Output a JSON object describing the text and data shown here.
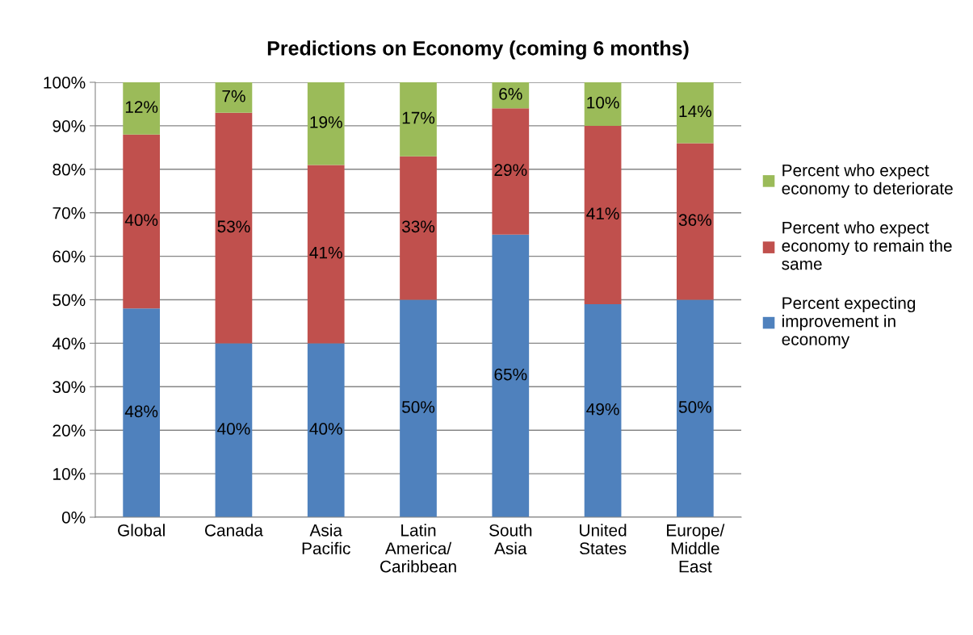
{
  "chart_data": {
    "type": "bar",
    "title": "Predictions on Economy (coming 6 months)",
    "categories": [
      "Global",
      "Canada",
      "Asia\nPacific",
      "Latin\nAmerica/\nCaribbean",
      "South\nAsia",
      "United\nStates",
      "Europe/\nMiddle\nEast"
    ],
    "stacked": true,
    "series": [
      {
        "name": "Percent expecting\nimprovement in\neconomy",
        "color": "#4f81bd",
        "values": [
          48,
          40,
          40,
          50,
          65,
          49,
          50
        ],
        "value_labels": [
          "48%",
          "40%",
          "40%",
          "50%",
          "65%",
          "49%",
          "50%"
        ]
      },
      {
        "name": "Percent who expect\neconomy to remain the\nsame",
        "color": "#c0504d",
        "values": [
          40,
          53,
          41,
          33,
          29,
          41,
          36
        ],
        "value_labels": [
          "40%",
          "53%",
          "41%",
          "33%",
          "29%",
          "41%",
          "36%"
        ]
      },
      {
        "name": "Percent who expect\neconomy to deteriorate",
        "color": "#9bbb59",
        "values": [
          12,
          7,
          19,
          17,
          6,
          10,
          14
        ],
        "value_labels": [
          "12%",
          "7%",
          "19%",
          "17%",
          "6%",
          "10%",
          "14%"
        ]
      }
    ],
    "ylim": [
      0,
      100
    ],
    "yticks": [
      {
        "value": 0,
        "label": "0%"
      },
      {
        "value": 10,
        "label": "10%"
      },
      {
        "value": 20,
        "label": "20%"
      },
      {
        "value": 30,
        "label": "30%"
      },
      {
        "value": 40,
        "label": "40%"
      },
      {
        "value": 50,
        "label": "50%"
      },
      {
        "value": 60,
        "label": "60%"
      },
      {
        "value": 70,
        "label": "70%"
      },
      {
        "value": 80,
        "label": "80%"
      },
      {
        "value": 90,
        "label": "90%"
      },
      {
        "value": 100,
        "label": "100%"
      }
    ],
    "grid": "y",
    "legend": "right"
  }
}
